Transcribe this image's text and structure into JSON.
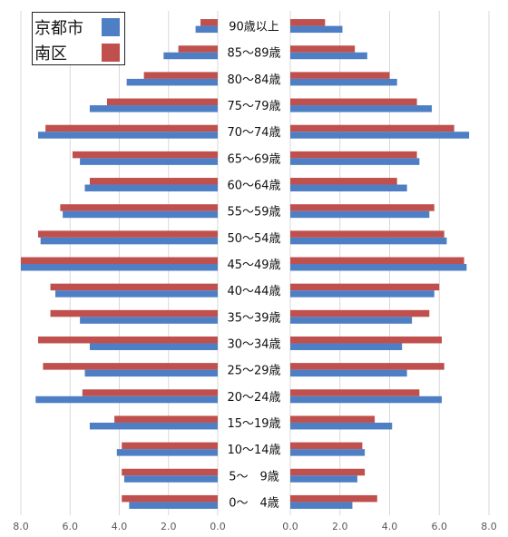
{
  "chart_data": {
    "type": "bar",
    "orientation": "horizontal-butterfly",
    "categories": [
      "90歳以上",
      "85〜89歳",
      "80〜84歳",
      "75〜79歳",
      "70〜74歳",
      "65〜69歳",
      "60〜64歳",
      "55〜59歳",
      "50〜54歳",
      "45〜49歳",
      "40〜44歳",
      "35〜39歳",
      "30〜34歳",
      "25〜29歳",
      "20〜24歳",
      "15〜19歳",
      "10〜14歳",
      "5〜　9歳",
      "0〜　4歳"
    ],
    "panels": [
      {
        "side": "left",
        "xlim": [
          8,
          0
        ],
        "xticks": [
          "8.0",
          "6.0",
          "4.0",
          "2.0",
          "0.0"
        ],
        "series": [
          {
            "name": "京都市",
            "values": [
              0.9,
              2.2,
              3.7,
              5.2,
              7.3,
              5.6,
              5.4,
              6.3,
              7.2,
              8.0,
              6.6,
              5.6,
              5.2,
              5.4,
              7.4,
              5.2,
              4.1,
              3.8,
              3.6
            ]
          },
          {
            "name": "南区",
            "values": [
              0.7,
              1.6,
              3.0,
              4.5,
              7.0,
              5.9,
              5.2,
              6.4,
              7.3,
              8.0,
              6.8,
              6.8,
              7.3,
              7.1,
              5.5,
              4.2,
              3.9,
              3.9,
              3.9
            ]
          }
        ]
      },
      {
        "side": "right",
        "xlim": [
          0,
          8
        ],
        "xticks": [
          "0.0",
          "2.0",
          "4.0",
          "6.0",
          "8.0"
        ],
        "series": [
          {
            "name": "京都市",
            "values": [
              2.1,
              3.1,
              4.3,
              5.7,
              7.2,
              5.2,
              4.7,
              5.6,
              6.3,
              7.1,
              5.8,
              4.9,
              4.5,
              4.7,
              6.1,
              4.1,
              3.0,
              2.7,
              2.5
            ]
          },
          {
            "name": "南区",
            "values": [
              1.4,
              2.6,
              4.0,
              5.1,
              6.6,
              5.1,
              4.3,
              5.8,
              6.2,
              7.0,
              6.0,
              5.6,
              6.1,
              6.2,
              5.2,
              3.4,
              2.9,
              3.0,
              3.5
            ]
          }
        ]
      }
    ],
    "legend": {
      "position": "top-left",
      "entries": [
        "京都市",
        "南区"
      ]
    },
    "grid": {
      "vertical": true
    }
  },
  "colors": {
    "京都市": "#4e7fc4",
    "南区": "#c0504d",
    "grid": "#d9d9d9"
  }
}
